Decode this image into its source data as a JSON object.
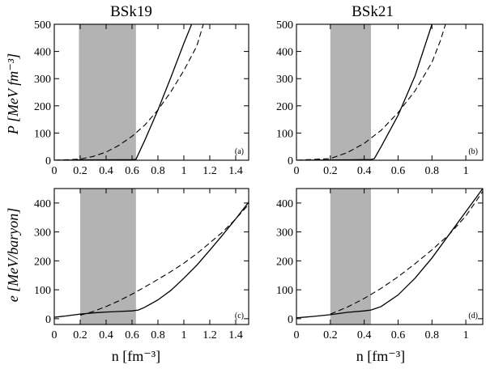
{
  "figure": {
    "columns": [
      "BSk19",
      "BSk21"
    ],
    "ylabel_top": "P [MeV fm⁻³]",
    "ylabel_bottom": "e [MeV/baryon]",
    "xlabel": "n [fm⁻³]"
  },
  "chart_data": [
    {
      "type": "line",
      "panel": "a",
      "title": "BSk19",
      "tag": "(a)",
      "xlabel": "",
      "ylabel": "P [MeV fm⁻³]",
      "xlim": [
        0,
        1.5
      ],
      "ylim": [
        0,
        500
      ],
      "xticks": [
        0,
        0.2,
        0.4,
        0.6,
        0.8,
        1.0,
        1.2,
        1.4
      ],
      "xtick_labels": [
        "0",
        "0.2",
        "0.4",
        "0.6",
        "0.8",
        "1",
        "1.2",
        "1.4"
      ],
      "yticks": [
        0,
        100,
        200,
        300,
        400,
        500
      ],
      "ytick_labels": [
        "0",
        "100",
        "200",
        "300",
        "400",
        "500"
      ],
      "shaded_band": [
        0.19,
        0.63
      ],
      "series": [
        {
          "style": "solid",
          "x": [
            0,
            0.2,
            0.4,
            0.6,
            0.63,
            0.7,
            0.8,
            0.9,
            1.0,
            1.06
          ],
          "y": [
            0,
            1,
            1.5,
            2,
            3,
            75,
            185,
            305,
            430,
            500
          ]
        },
        {
          "style": "dashed",
          "x": [
            0,
            0.2,
            0.3,
            0.4,
            0.5,
            0.6,
            0.7,
            0.8,
            0.9,
            1.0,
            1.1,
            1.15
          ],
          "y": [
            0,
            4,
            14,
            30,
            55,
            88,
            130,
            185,
            252,
            330,
            420,
            500
          ]
        }
      ]
    },
    {
      "type": "line",
      "panel": "b",
      "title": "BSk21",
      "tag": "(b)",
      "xlabel": "",
      "ylabel": "",
      "xlim": [
        0,
        1.1
      ],
      "ylim": [
        0,
        500
      ],
      "xticks": [
        0,
        0.2,
        0.4,
        0.6,
        0.8,
        1.0
      ],
      "xtick_labels": [
        "0",
        "0.2",
        "0.4",
        "0.6",
        "0.8",
        "1"
      ],
      "yticks": [
        0,
        100,
        200,
        300,
        400,
        500
      ],
      "ytick_labels": [
        "0",
        "100",
        "200",
        "300",
        "400",
        "500"
      ],
      "shaded_band": [
        0.2,
        0.44
      ],
      "series": [
        {
          "style": "solid",
          "x": [
            0,
            0.2,
            0.3,
            0.44,
            0.46,
            0.5,
            0.6,
            0.7,
            0.8
          ],
          "y": [
            0,
            1,
            1.5,
            2.5,
            6,
            50,
            165,
            310,
            500
          ]
        },
        {
          "style": "dashed",
          "x": [
            0,
            0.2,
            0.3,
            0.4,
            0.5,
            0.6,
            0.7,
            0.8,
            0.85,
            0.88
          ],
          "y": [
            0,
            6,
            28,
            62,
            110,
            175,
            255,
            360,
            440,
            500
          ]
        }
      ]
    },
    {
      "type": "line",
      "panel": "c",
      "title": "",
      "tag": "(c)",
      "xlabel": "n [fm⁻³]",
      "ylabel": "e [MeV/baryon]",
      "xlim": [
        0,
        1.5
      ],
      "ylim": [
        -20,
        450
      ],
      "xticks": [
        0,
        0.2,
        0.4,
        0.6,
        0.8,
        1.0,
        1.2,
        1.4
      ],
      "xtick_labels": [
        "0",
        "0.2",
        "0.4",
        "0.6",
        "0.8",
        "1",
        "1.2",
        "1.4"
      ],
      "yticks": [
        0,
        100,
        200,
        300,
        400
      ],
      "ytick_labels": [
        "0",
        "100",
        "200",
        "300",
        "400"
      ],
      "shaded_band": [
        0.2,
        0.63
      ],
      "series": [
        {
          "style": "solid",
          "x": [
            0,
            0.1,
            0.2,
            0.3,
            0.4,
            0.5,
            0.6,
            0.65,
            0.7,
            0.8,
            0.9,
            1.0,
            1.1,
            1.2,
            1.3,
            1.4,
            1.5
          ],
          "y": [
            5,
            10,
            16,
            20,
            23,
            25,
            27,
            30,
            40,
            65,
            98,
            140,
            185,
            237,
            290,
            345,
            403
          ]
        },
        {
          "style": "dashed",
          "x": [
            0.2,
            0.3,
            0.4,
            0.5,
            0.6,
            0.7,
            0.8,
            0.9,
            1.0,
            1.1,
            1.2,
            1.3,
            1.4,
            1.5
          ],
          "y": [
            12,
            25,
            42,
            62,
            85,
            110,
            136,
            163,
            192,
            225,
            262,
            300,
            345,
            395
          ]
        }
      ]
    },
    {
      "type": "line",
      "panel": "d",
      "title": "",
      "tag": "(d)",
      "xlabel": "n [fm⁻³]",
      "ylabel": "",
      "xlim": [
        0,
        1.1
      ],
      "ylim": [
        -20,
        450
      ],
      "xticks": [
        0,
        0.2,
        0.4,
        0.6,
        0.8,
        1.0
      ],
      "xtick_labels": [
        "0",
        "0.2",
        "0.4",
        "0.6",
        "0.8",
        "1"
      ],
      "yticks": [
        0,
        100,
        200,
        300,
        400
      ],
      "ytick_labels": [
        "0",
        "100",
        "200",
        "300",
        "400"
      ],
      "shaded_band": [
        0.2,
        0.44
      ],
      "series": [
        {
          "style": "solid",
          "x": [
            0,
            0.1,
            0.2,
            0.3,
            0.4,
            0.44,
            0.5,
            0.6,
            0.7,
            0.8,
            0.9,
            1.0,
            1.1
          ],
          "y": [
            3,
            8,
            14,
            22,
            27,
            30,
            42,
            82,
            140,
            210,
            290,
            370,
            450
          ]
        },
        {
          "style": "dashed",
          "x": [
            0.2,
            0.3,
            0.4,
            0.5,
            0.6,
            0.7,
            0.8,
            0.9,
            1.0,
            1.1
          ],
          "y": [
            16,
            40,
            70,
            105,
            145,
            190,
            238,
            290,
            355,
            440
          ]
        }
      ]
    }
  ]
}
